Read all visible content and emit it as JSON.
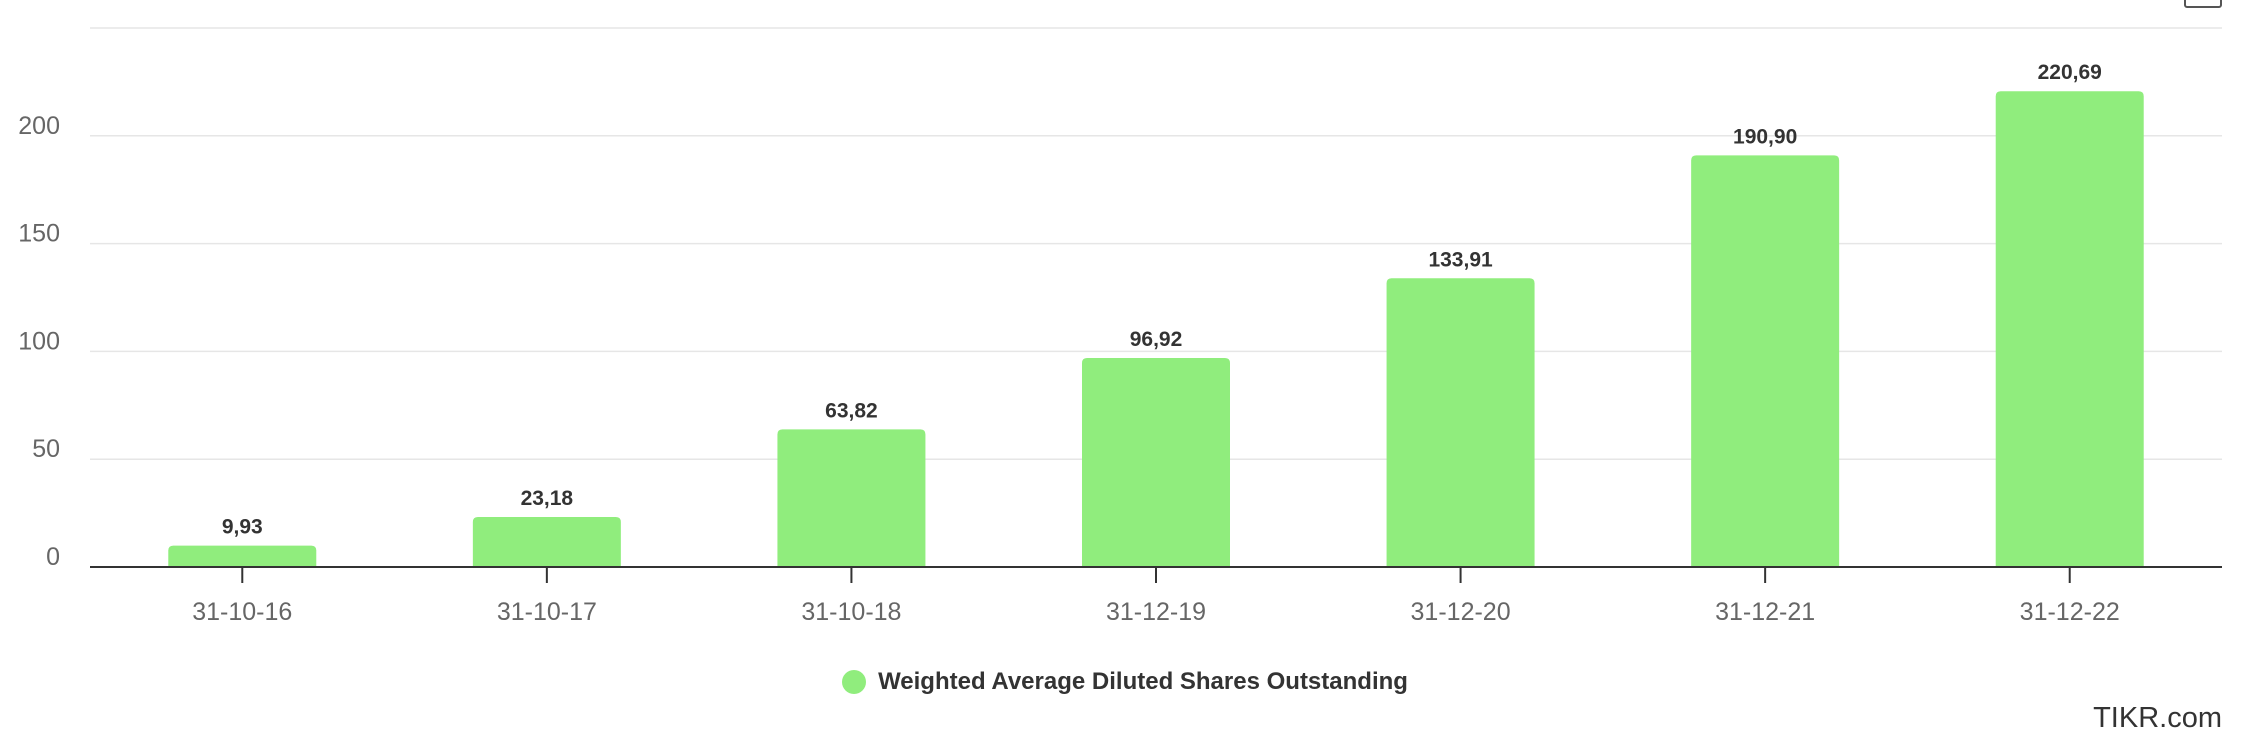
{
  "chart_data": {
    "type": "bar",
    "categories": [
      "31-10-16",
      "31-10-17",
      "31-10-18",
      "31-12-19",
      "31-12-20",
      "31-12-21",
      "31-12-22"
    ],
    "series": [
      {
        "name": "Weighted Average Diluted Shares Outstanding",
        "values": [
          9.93,
          23.18,
          63.82,
          96.92,
          133.91,
          190.9,
          220.69
        ],
        "labels": [
          "9,93",
          "23,18",
          "63,82",
          "96,92",
          "133,91",
          "190,90",
          "220,69"
        ],
        "color": "#90ed7d"
      }
    ],
    "yticks": [
      0,
      50,
      100,
      150,
      200
    ],
    "ylim": [
      0,
      250
    ],
    "grid": true,
    "legend_position": "bottom-center"
  },
  "legend": {
    "label": "Weighted Average Diluted Shares Outstanding",
    "color": "#90ed7d"
  },
  "credit": "TIKR.com",
  "menu": {
    "icon": "menu-icon"
  }
}
